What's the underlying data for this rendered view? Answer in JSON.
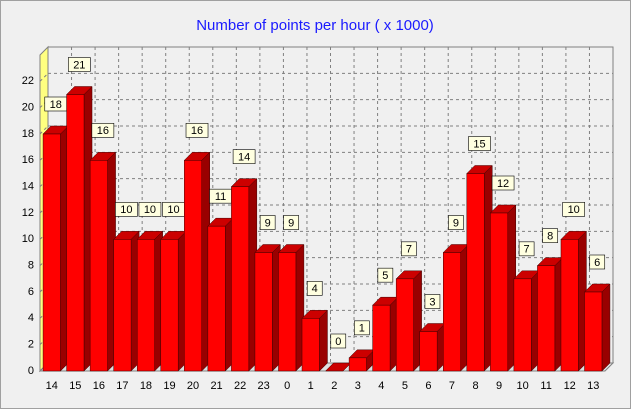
{
  "chart_data": {
    "type": "bar3d",
    "title": "Number of points per hour ( x 1000)",
    "categories": [
      "14",
      "15",
      "16",
      "17",
      "18",
      "19",
      "20",
      "21",
      "22",
      "23",
      "0",
      "1",
      "2",
      "3",
      "4",
      "5",
      "6",
      "7",
      "8",
      "9",
      "10",
      "11",
      "12",
      "13"
    ],
    "values": [
      18,
      21,
      16,
      10,
      10,
      10,
      16,
      11,
      14,
      9,
      9,
      4,
      0,
      1,
      5,
      7,
      3,
      9,
      15,
      12,
      7,
      8,
      10,
      6
    ],
    "color": "#ff0000",
    "ylim": [
      0,
      24
    ],
    "yticks": [
      0,
      2,
      4,
      6,
      8,
      10,
      12,
      14,
      16,
      18,
      20,
      22
    ],
    "grid": true
  }
}
